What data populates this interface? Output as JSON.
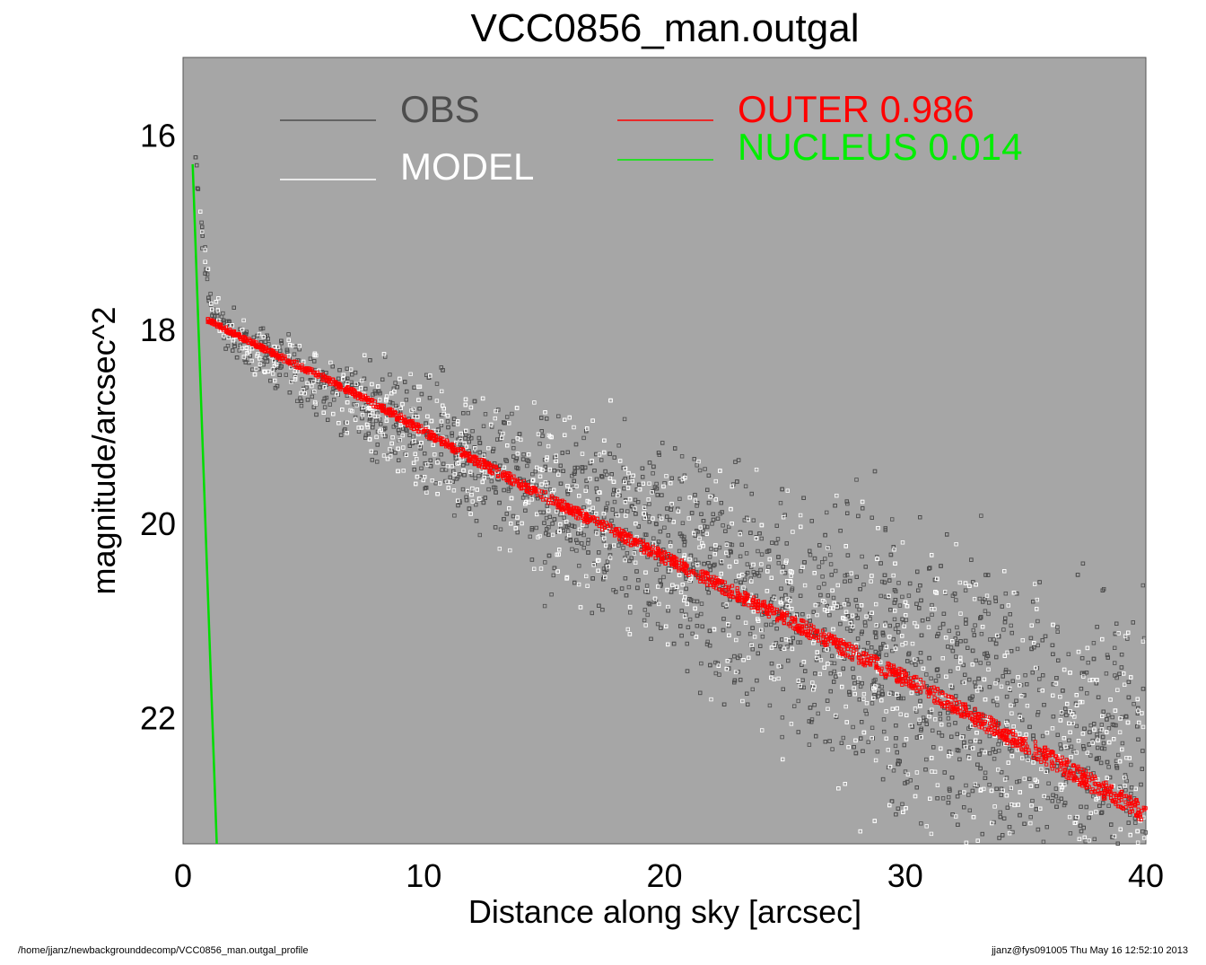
{
  "chart_data": {
    "type": "scatter",
    "title": "VCC0856_man.outgal",
    "xlabel": "Distance along sky [arcsec]",
    "ylabel": "magnitude/arcsec^2",
    "xlim": [
      0,
      40
    ],
    "ylim": [
      23.3,
      15.2
    ],
    "y_inverted": true,
    "xticks": [
      0,
      10,
      20,
      30,
      40
    ],
    "yticks": [
      16,
      18,
      20,
      22
    ],
    "plot_background": "#a6a6a6",
    "legend": [
      {
        "label": "OBS",
        "color": "#4d4d4d"
      },
      {
        "label": "MODEL",
        "color": "#ffffff"
      },
      {
        "label": "OUTER  0.986",
        "color": "#ff0000"
      },
      {
        "label": "NUCLEUS  0.014",
        "color": "#00ee00"
      }
    ],
    "series": [
      {
        "name": "OBS",
        "kind": "points",
        "color": "#4d4d4d",
        "profile_x": [
          0.4,
          0.6,
          0.9,
          1.2,
          1.6,
          2.0,
          3,
          4,
          5,
          6,
          8,
          10,
          12,
          15,
          20,
          25,
          30,
          35,
          40
        ],
        "profile_y": [
          16.0,
          16.5,
          17.3,
          17.8,
          17.95,
          18.05,
          18.2,
          18.35,
          18.5,
          18.62,
          18.85,
          19.1,
          19.35,
          19.7,
          20.3,
          20.9,
          21.55,
          22.2,
          22.9
        ]
      },
      {
        "name": "MODEL",
        "kind": "points",
        "color": "#ffffff",
        "profile_x": [
          0.4,
          0.6,
          0.9,
          1.2,
          1.6,
          2.0,
          3,
          4,
          5,
          6,
          8,
          10,
          12,
          15,
          20,
          25,
          30,
          35,
          40
        ],
        "profile_y": [
          16.0,
          16.5,
          17.3,
          17.8,
          17.95,
          18.05,
          18.2,
          18.35,
          18.5,
          18.62,
          18.85,
          19.1,
          19.35,
          19.7,
          20.3,
          20.9,
          21.55,
          22.2,
          22.9
        ]
      },
      {
        "name": "OUTER  0.986",
        "kind": "band",
        "color": "#ff0000",
        "x": [
          1.0,
          2,
          4,
          6,
          8,
          10,
          12,
          15,
          20,
          25,
          30,
          35,
          40
        ],
        "y": [
          17.9,
          18.03,
          18.28,
          18.52,
          18.77,
          19.05,
          19.33,
          19.72,
          20.35,
          20.98,
          21.6,
          22.28,
          23.0
        ]
      },
      {
        "name": "NUCLEUS  0.014",
        "kind": "line",
        "color": "#00dd00",
        "x": [
          0.4,
          1.4
        ],
        "y": [
          16.3,
          23.3
        ]
      }
    ]
  },
  "footer": {
    "path": "/home/jjanz/newbackgrounddecomp/VCC0856_man.outgal_profile",
    "stamp": "jjanz@fys091005  Thu May 16 12:52:10 2013"
  }
}
